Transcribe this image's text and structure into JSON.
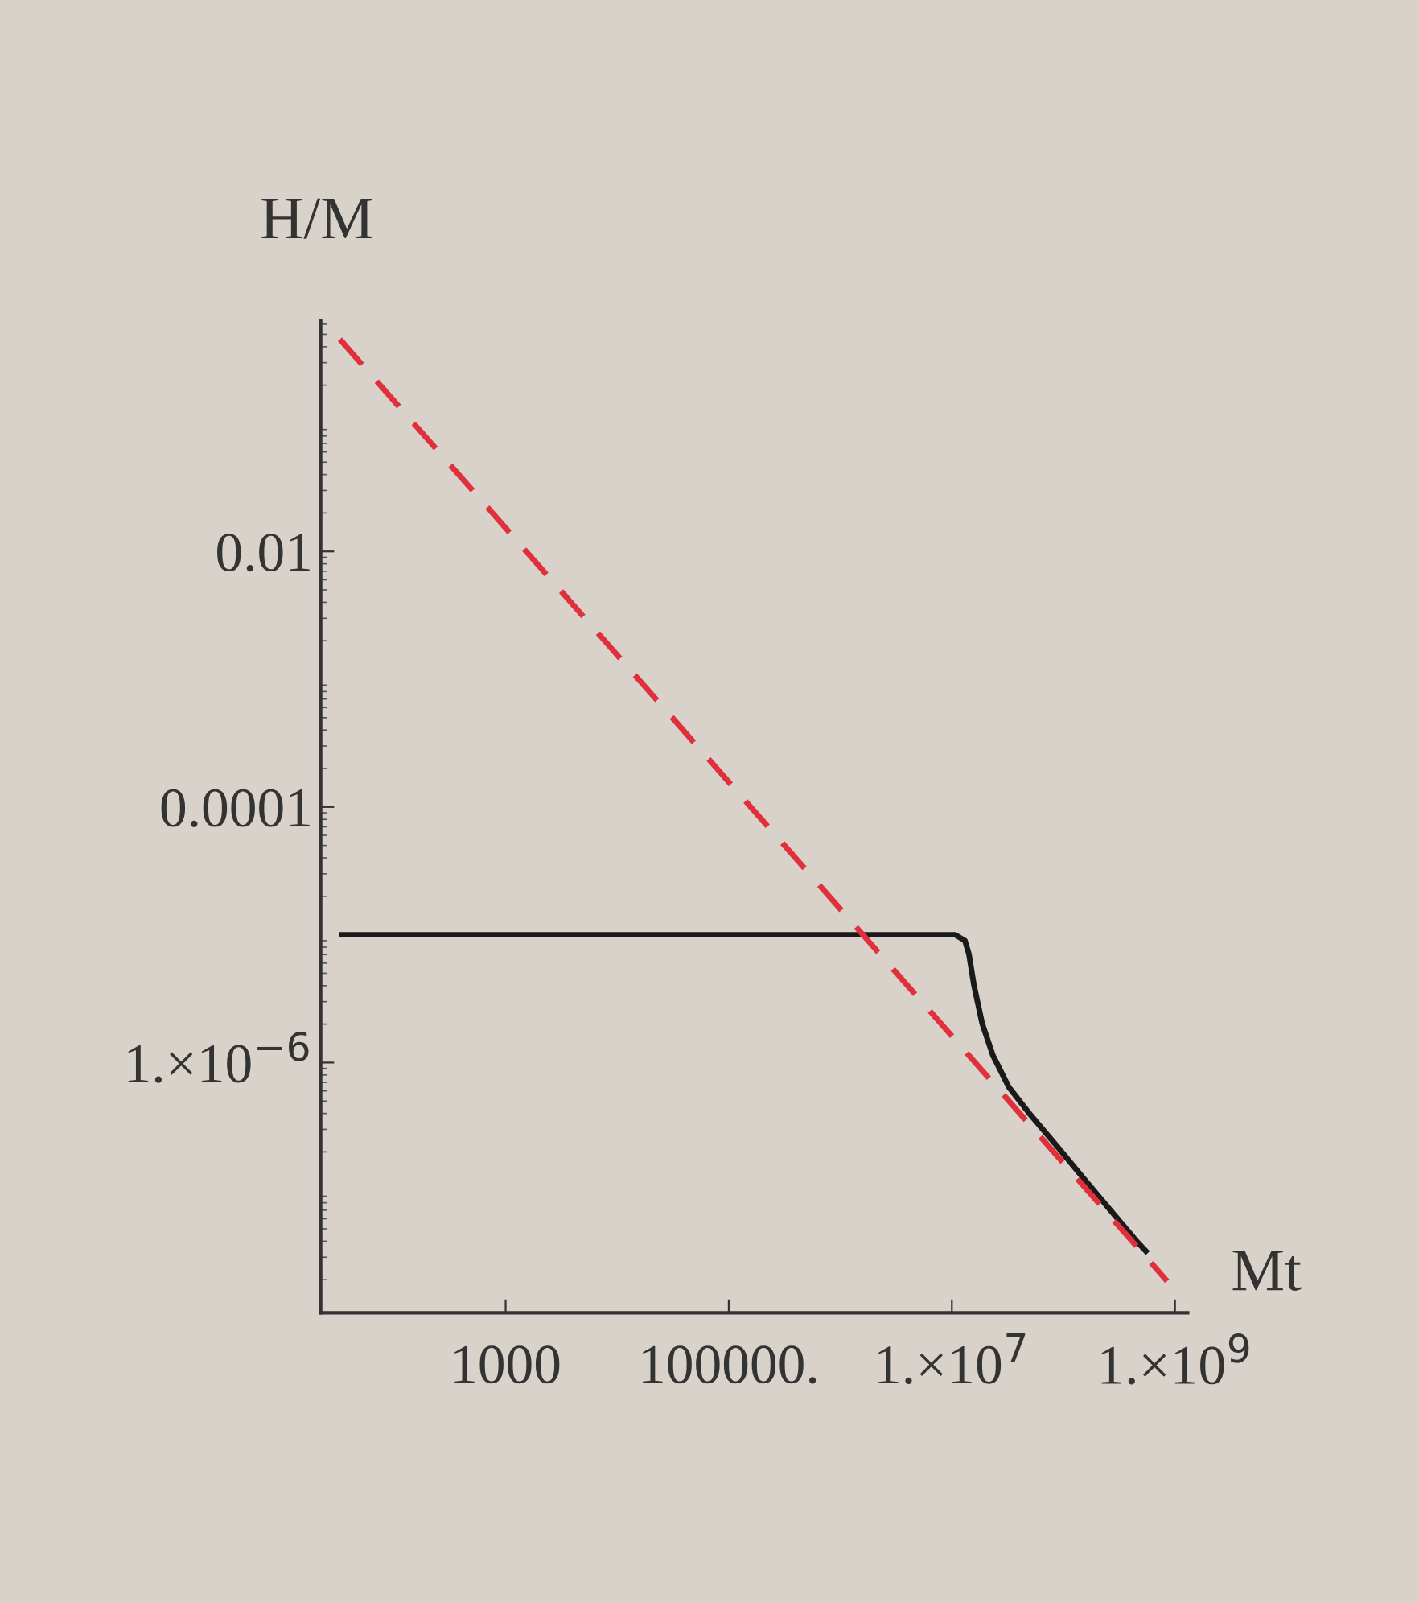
{
  "chart_data": {
    "type": "line",
    "xlabel": "Mt",
    "ylabel": "H/M",
    "log": "xy",
    "grid": false,
    "xlim": [
      22,
      1300000000.0
    ],
    "ylim": [
      1.1e-08,
      0.64
    ],
    "xticks": [
      {
        "value": 1000,
        "label": "1000"
      },
      {
        "value": 100000,
        "label": "100000."
      },
      {
        "value": 10000000,
        "label": "1.×10$^{7}$"
      },
      {
        "value": 1000000000,
        "label": "1.×10$^{9}$"
      }
    ],
    "yticks": [
      {
        "value": 0.01,
        "label": "0.01"
      },
      {
        "value": 0.0001,
        "label": "0.0001"
      },
      {
        "value": 1e-06,
        "label": "1.×10$^{−6}$"
      }
    ],
    "series": [
      {
        "color": "#1a1a1a",
        "line_style": "solid",
        "x": [
          34,
          10700000.0,
          13100000.0,
          14200000.0,
          15800000.0,
          18700000.0,
          23300000.0,
          32500000.0,
          50600000.0,
          88100000.0,
          153000000.0,
          267000000.0,
          465000000.0,
          548000000.0
        ],
        "values": [
          1e-05,
          1e-05,
          9e-06,
          7.1e-06,
          4e-06,
          2.02e-06,
          1.14e-06,
          6.4e-07,
          3.9e-07,
          2.2e-07,
          1.23e-07,
          6.9e-08,
          3.9e-08,
          3.35e-08
        ]
      },
      {
        "color": "#e0303c",
        "line_style": "dashed",
        "x": [
          32.7,
          850000000.0
        ],
        "values": [
          0.457,
          1.95e-08
        ]
      }
    ]
  }
}
